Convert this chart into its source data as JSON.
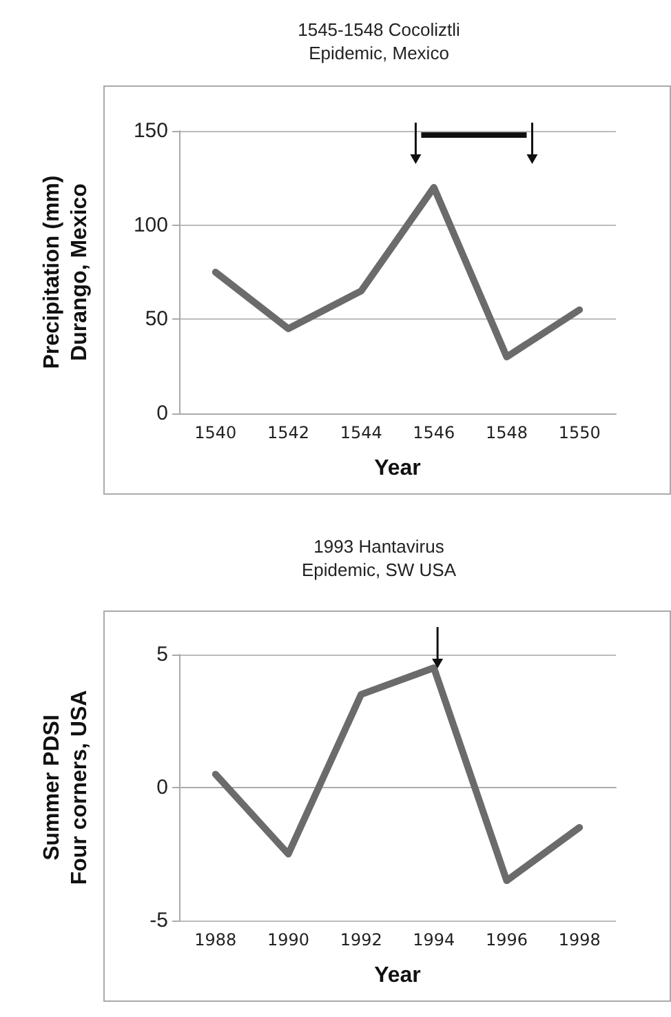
{
  "chart_data": [
    {
      "type": "line",
      "title": "1545-1548 Cocoliztli\nEpidemic, Mexico",
      "xlabel": "Year",
      "ylabel": "Precipitation (mm)\nDurango, Mexico",
      "categories": [
        "1540",
        "1542",
        "1544",
        "1546",
        "1548",
        "1550"
      ],
      "series": [
        {
          "color": "#6b6b6b",
          "values": [
            75,
            45,
            65,
            120,
            30,
            55
          ]
        }
      ],
      "ylim": [
        0,
        150
      ],
      "yticks": [
        0,
        50,
        100,
        150
      ],
      "grid": "y",
      "marker": "none",
      "line_style": "solid"
    },
    {
      "type": "line",
      "title": "1993 Hantavirus\nEpidemic, SW USA",
      "xlabel": "Year",
      "ylabel": "Summer PDSI\nFour corners, USA",
      "categories": [
        "1988",
        "1990",
        "1992",
        "1994",
        "1996",
        "1998"
      ],
      "series": [
        {
          "color": "#6b6b6b",
          "values": [
            0.5,
            -2.5,
            3.5,
            4.5,
            -3.5,
            -1.5
          ]
        }
      ],
      "ylim": [
        -5,
        5
      ],
      "yticks": [
        -5,
        0,
        5
      ],
      "grid": "y",
      "marker": "none",
      "line_style": "solid"
    }
  ]
}
